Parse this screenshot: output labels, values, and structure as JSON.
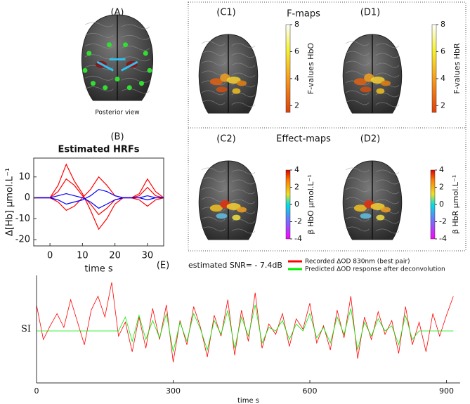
{
  "figure": {
    "panel_a": "(A)",
    "posterior": "Posterior view",
    "panel_b": "(B)",
    "panel_c1": "(C1)",
    "fmaps": "F-maps",
    "panel_d1": "(D1)",
    "panel_c2": "(C2)",
    "effmaps": "Effect-maps",
    "panel_d2": "(D2)",
    "panel_e": "(E)",
    "snr": "estimated SNR= - 7.4dB",
    "colorbars": [
      {
        "label": "F-values HbO",
        "lim": [
          1.5,
          8
        ],
        "ticks": [
          2,
          4,
          6,
          8
        ]
      },
      {
        "label": "F-values HbR",
        "lim": [
          1.5,
          8
        ],
        "ticks": [
          2,
          4,
          6,
          8
        ]
      },
      {
        "label": "β HbO μmol.L⁻¹",
        "lim": [
          -4,
          4
        ],
        "ticks": [
          -4,
          -2,
          0,
          2,
          4
        ]
      },
      {
        "label": "β HbR μmol.L⁻¹",
        "lim": [
          -4,
          4
        ],
        "ticks": [
          -4,
          -2,
          0,
          2,
          4
        ]
      }
    ]
  },
  "chart_data": [
    {
      "type": "line",
      "title": "Estimated HRFs",
      "ylabel": "Δ[Hb] μmol.L⁻¹",
      "xlabel": "time s",
      "x": [
        -5,
        -2.5,
        0,
        2.5,
        5,
        7.5,
        10,
        12.5,
        15,
        17.5,
        20,
        22.5,
        25,
        27.5,
        30,
        32.5,
        35
      ],
      "xlim": [
        -5,
        35
      ],
      "xticks": [
        0,
        10,
        20,
        30
      ],
      "ylim": [
        -23,
        19
      ],
      "yticks": [
        -20,
        -10,
        0,
        10
      ],
      "series": [
        {
          "color": "#ff0000",
          "values": [
            0,
            0,
            0,
            6,
            16,
            8,
            2,
            -6,
            -15,
            -10,
            -3,
            0,
            0,
            2,
            9,
            3,
            0
          ]
        },
        {
          "color": "#ff0000",
          "values": [
            0,
            0,
            0,
            3,
            9,
            6,
            1,
            -3,
            -8,
            -5,
            -1,
            0,
            0,
            1,
            5,
            1,
            0
          ]
        },
        {
          "color": "#ff0000",
          "values": [
            0,
            0,
            0,
            -2,
            -6,
            -4,
            0,
            4,
            10,
            6,
            1,
            0,
            0,
            -1,
            -4,
            -1,
            0
          ]
        },
        {
          "color": "#0000ff",
          "values": [
            0,
            0,
            0,
            -1,
            -3,
            -2,
            -1,
            1,
            4,
            3,
            1,
            0,
            0,
            0,
            -1,
            0,
            0
          ]
        },
        {
          "color": "#0000ff",
          "values": [
            0,
            0,
            0,
            1,
            2,
            1,
            0,
            -2,
            -5,
            -3,
            -1,
            0,
            0,
            0,
            1,
            0,
            0
          ]
        }
      ]
    },
    {
      "type": "line",
      "ylabel": "SI",
      "xlabel": "time s",
      "x": [
        0,
        15,
        30,
        45,
        60,
        75,
        90,
        105,
        120,
        135,
        150,
        165,
        180,
        195,
        210,
        225,
        240,
        255,
        270,
        285,
        300,
        315,
        330,
        345,
        360,
        375,
        390,
        405,
        420,
        435,
        450,
        465,
        480,
        495,
        510,
        525,
        540,
        555,
        570,
        585,
        600,
        615,
        630,
        645,
        660,
        675,
        690,
        705,
        720,
        735,
        750,
        765,
        780,
        795,
        810,
        825,
        840,
        855,
        870,
        885,
        900,
        915
      ],
      "xlim": [
        0,
        930
      ],
      "xticks": [
        0,
        300,
        600,
        900
      ],
      "ylim": [
        -3,
        3.2
      ],
      "series": [
        {
          "name": "Recorded ΔOD 830nm (best pair)",
          "color": "#ff0000",
          "values": [
            1.5,
            -0.5,
            0.3,
            1.0,
            0.2,
            1.8,
            0.5,
            -0.8,
            1.2,
            2.0,
            0.8,
            2.8,
            -0.3,
            0.5,
            -1.2,
            0.8,
            -1.0,
            1.3,
            -0.5,
            1.5,
            -1.8,
            0.6,
            -0.8,
            1.4,
            0.2,
            -1.5,
            0.9,
            -0.3,
            1.8,
            -1.4,
            1.2,
            -0.6,
            2.2,
            -1.0,
            0.4,
            -0.2,
            1.0,
            -0.9,
            0.7,
            0.1,
            1.6,
            -0.7,
            0.3,
            -1.1,
            1.2,
            -0.4,
            2.0,
            -1.6,
            0.8,
            -0.5,
            1.1,
            -0.2,
            0.6,
            -1.3,
            1.4,
            -0.8,
            0.5,
            -1.2,
            1.0,
            -0.3,
            0.9,
            2.0
          ]
        },
        {
          "name": "Predicted ΔOD response after deconvolution",
          "color": "#00ee00",
          "values": [
            0,
            0,
            0,
            0,
            0,
            0,
            0,
            0,
            0,
            0,
            0,
            0,
            0,
            0.8,
            -0.6,
            0.9,
            -0.5,
            0.6,
            -0.4,
            1.0,
            -1.2,
            0.5,
            -0.6,
            1.0,
            0.1,
            -1.1,
            0.6,
            -0.2,
            1.2,
            -1.0,
            0.8,
            -0.3,
            1.5,
            -0.7,
            0.2,
            0,
            0.6,
            -0.5,
            0.4,
            0,
            1.0,
            -0.4,
            0.2,
            -0.7,
            0.8,
            -0.2,
            1.3,
            -1.1,
            0.5,
            -0.3,
            0.7,
            0,
            0.3,
            -0.8,
            0.9,
            -0.5,
            0,
            0,
            0,
            0,
            0,
            0
          ]
        }
      ]
    }
  ]
}
